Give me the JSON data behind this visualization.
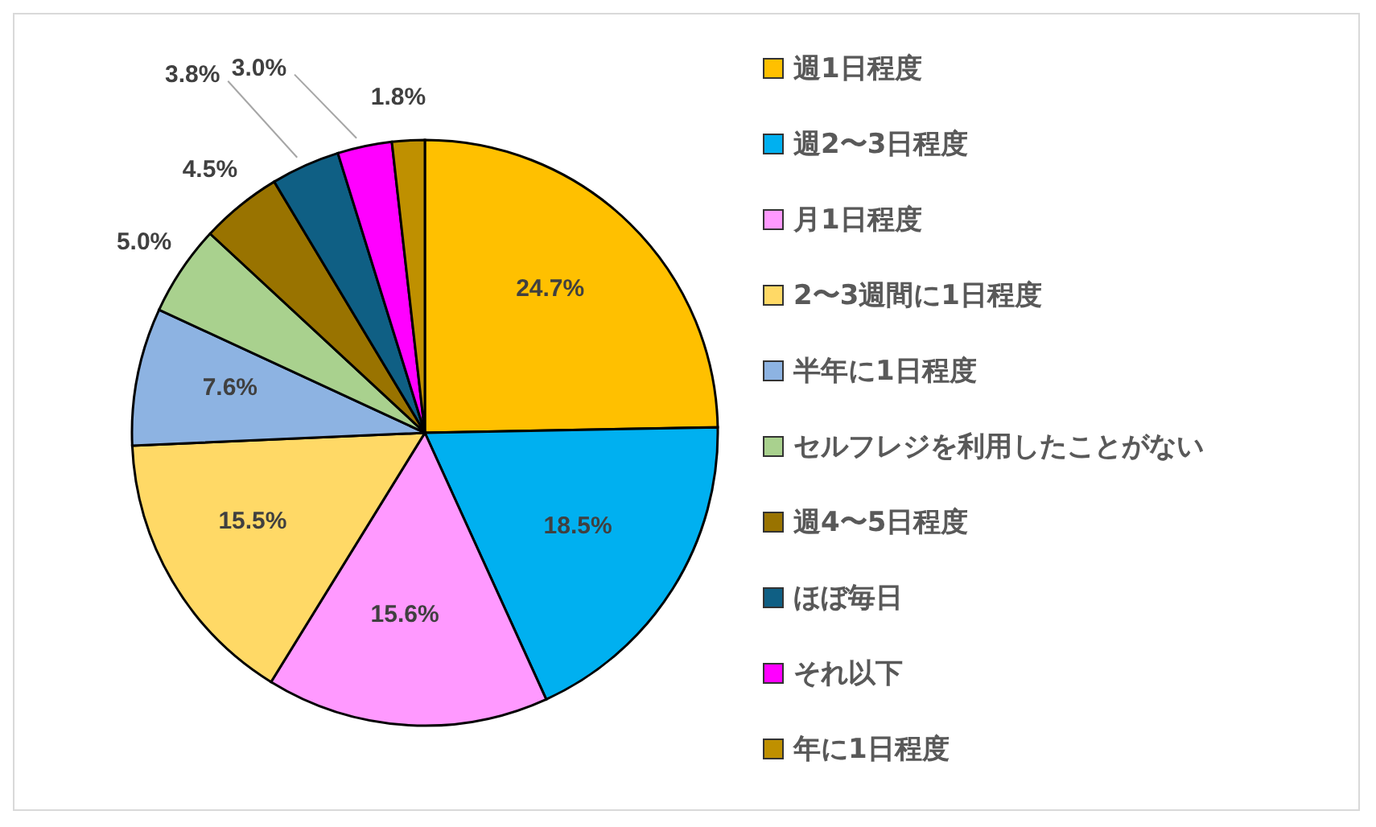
{
  "chart_data": {
    "type": "pie",
    "categories": [
      "週1日程度",
      "週2〜3日程度",
      "月1日程度",
      "2〜3週間に1日程度",
      "半年に1日程度",
      "セルフレジを利用したことがない",
      "週4〜5日程度",
      "ほぼ毎日",
      "それ以下",
      "年に1日程度"
    ],
    "values": [
      24.7,
      18.5,
      15.6,
      15.5,
      7.6,
      5.0,
      4.5,
      3.8,
      3.0,
      1.8
    ],
    "value_labels": [
      "24.7%",
      "18.5%",
      "15.6%",
      "15.5%",
      "7.6%",
      "5.0%",
      "4.5%",
      "3.8%",
      "3.0%",
      "1.8%"
    ],
    "colors": [
      "#ffc000",
      "#00b0f0",
      "#ff99ff",
      "#ffd966",
      "#8db3e2",
      "#a9d18e",
      "#997300",
      "#0f5f84",
      "#ff00ff",
      "#bf9000"
    ],
    "legend": "right"
  }
}
